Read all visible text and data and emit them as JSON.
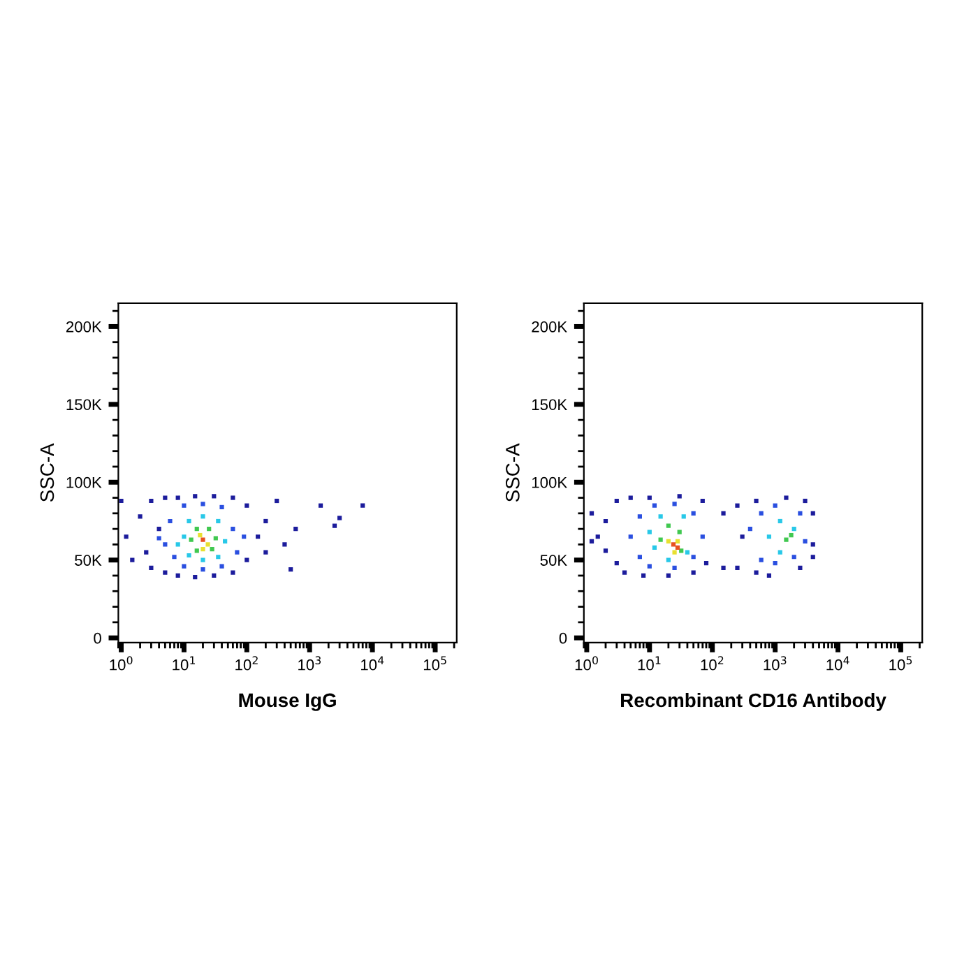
{
  "chart_data": [
    {
      "type": "scatter",
      "xlabel": "Mouse IgG",
      "ylabel": "SSC-A",
      "log": "x",
      "marker": "square",
      "grid": false,
      "xlim": [
        0.9,
        220000
      ],
      "ylim": [
        -3000,
        215000
      ],
      "xticks": [
        {
          "value": 1,
          "label": "10$^{0}$"
        },
        {
          "value": 10,
          "label": "10$^{1}$"
        },
        {
          "value": 100,
          "label": "10$^{2}$"
        },
        {
          "value": 1000,
          "label": "10$^{3}$"
        },
        {
          "value": 10000,
          "label": "10$^{4}$"
        },
        {
          "value": 100000,
          "label": "10$^{5}$"
        }
      ],
      "yticks": [
        0,
        {
          "value": 50000,
          "label": "50K"
        },
        {
          "value": 100000,
          "label": "100K"
        },
        {
          "value": 150000,
          "label": "150K"
        },
        {
          "value": 200000,
          "label": "200K"
        }
      ],
      "series": [
        {
          "color": "#1c1c9c",
          "x": [
            1,
            1.2,
            1.5,
            2,
            2.5,
            3,
            3,
            4,
            5,
            5,
            8,
            8,
            15,
            15,
            30,
            30,
            60,
            60,
            100,
            100,
            150,
            200,
            200,
            300,
            400,
            500,
            600,
            1500,
            2500,
            3000,
            7000
          ],
          "values": [
            88000,
            65000,
            50000,
            78000,
            55000,
            88000,
            45000,
            70000,
            42000,
            90000,
            40000,
            90000,
            39000,
            91000,
            40000,
            91000,
            42000,
            90000,
            50000,
            85000,
            65000,
            75000,
            55000,
            88000,
            60000,
            44000,
            70000,
            85000,
            72000,
            77000,
            85000
          ]
        },
        {
          "color": "#2a4fe0",
          "x": [
            5,
            6,
            7,
            10,
            10,
            20,
            20,
            40,
            40,
            60,
            70,
            4,
            90
          ],
          "values": [
            60000,
            75000,
            52000,
            85000,
            46000,
            86000,
            44000,
            84000,
            46000,
            70000,
            55000,
            64000,
            65000
          ]
        },
        {
          "color": "#28c8e8",
          "x": [
            10,
            12,
            12,
            20,
            20,
            35,
            35,
            45,
            8
          ],
          "values": [
            65000,
            75000,
            53000,
            78000,
            50000,
            75000,
            52000,
            62000,
            60000
          ]
        },
        {
          "color": "#40c850",
          "x": [
            13,
            16,
            16,
            25,
            28,
            32
          ],
          "values": [
            63000,
            70000,
            56000,
            70000,
            57000,
            64000
          ]
        },
        {
          "color": "#e8e030",
          "x": [
            18,
            24,
            20
          ],
          "values": [
            66000,
            60000,
            57000
          ]
        },
        {
          "color": "#e85020",
          "x": [
            20
          ],
          "values": [
            63000
          ]
        }
      ]
    },
    {
      "type": "scatter",
      "xlabel": "Recombinant CD16 Antibody",
      "ylabel": "SSC-A",
      "log": "x",
      "marker": "square",
      "grid": false,
      "xlim": [
        0.9,
        220000
      ],
      "ylim": [
        -3000,
        215000
      ],
      "xticks": [
        {
          "value": 1,
          "label": "10$^{0}$"
        },
        {
          "value": 10,
          "label": "10$^{1}$"
        },
        {
          "value": 100,
          "label": "10$^{2}$"
        },
        {
          "value": 1000,
          "label": "10$^{3}$"
        },
        {
          "value": 10000,
          "label": "10$^{4}$"
        },
        {
          "value": 100000,
          "label": "10$^{5}$"
        }
      ],
      "yticks": [
        0,
        {
          "value": 50000,
          "label": "50K"
        },
        {
          "value": 100000,
          "label": "100K"
        },
        {
          "value": 150000,
          "label": "150K"
        },
        {
          "value": 200000,
          "label": "200K"
        }
      ],
      "series": [
        {
          "color": "#1c1c9c",
          "x": [
            1.2,
            1.2,
            1.5,
            2,
            2,
            3,
            3,
            4,
            5,
            8,
            10,
            20,
            30,
            50,
            70,
            80,
            150,
            150,
            250,
            250,
            300,
            500,
            500,
            800,
            1500,
            2500,
            3000,
            4000,
            4000,
            4000
          ],
          "values": [
            80000,
            62000,
            65000,
            56000,
            75000,
            48000,
            88000,
            42000,
            90000,
            40000,
            90000,
            40000,
            91000,
            42000,
            88000,
            48000,
            80000,
            45000,
            85000,
            45000,
            65000,
            88000,
            42000,
            40000,
            90000,
            45000,
            88000,
            60000,
            80000,
            52000
          ]
        },
        {
          "color": "#2a4fe0",
          "x": [
            5,
            7,
            7,
            10,
            12,
            25,
            25,
            50,
            50,
            70,
            400,
            600,
            600,
            1000,
            1000,
            2500,
            3000,
            2000
          ],
          "values": [
            65000,
            78000,
            52000,
            46000,
            85000,
            86000,
            45000,
            80000,
            52000,
            65000,
            70000,
            80000,
            50000,
            85000,
            48000,
            80000,
            62000,
            52000
          ]
        },
        {
          "color": "#28c8e8",
          "x": [
            10,
            12,
            15,
            20,
            35,
            40,
            800,
            1200,
            1200,
            2000
          ],
          "values": [
            68000,
            58000,
            78000,
            50000,
            78000,
            55000,
            65000,
            75000,
            55000,
            70000
          ]
        },
        {
          "color": "#40c850",
          "x": [
            15,
            20,
            30,
            32,
            1500,
            1800
          ],
          "values": [
            63000,
            72000,
            68000,
            56000,
            63000,
            66000
          ]
        },
        {
          "color": "#e8e030",
          "x": [
            20,
            28,
            25
          ],
          "values": [
            62000,
            62000,
            55000
          ]
        },
        {
          "color": "#e85020",
          "x": [
            24,
            28
          ],
          "values": [
            60000,
            58000
          ]
        }
      ]
    }
  ]
}
